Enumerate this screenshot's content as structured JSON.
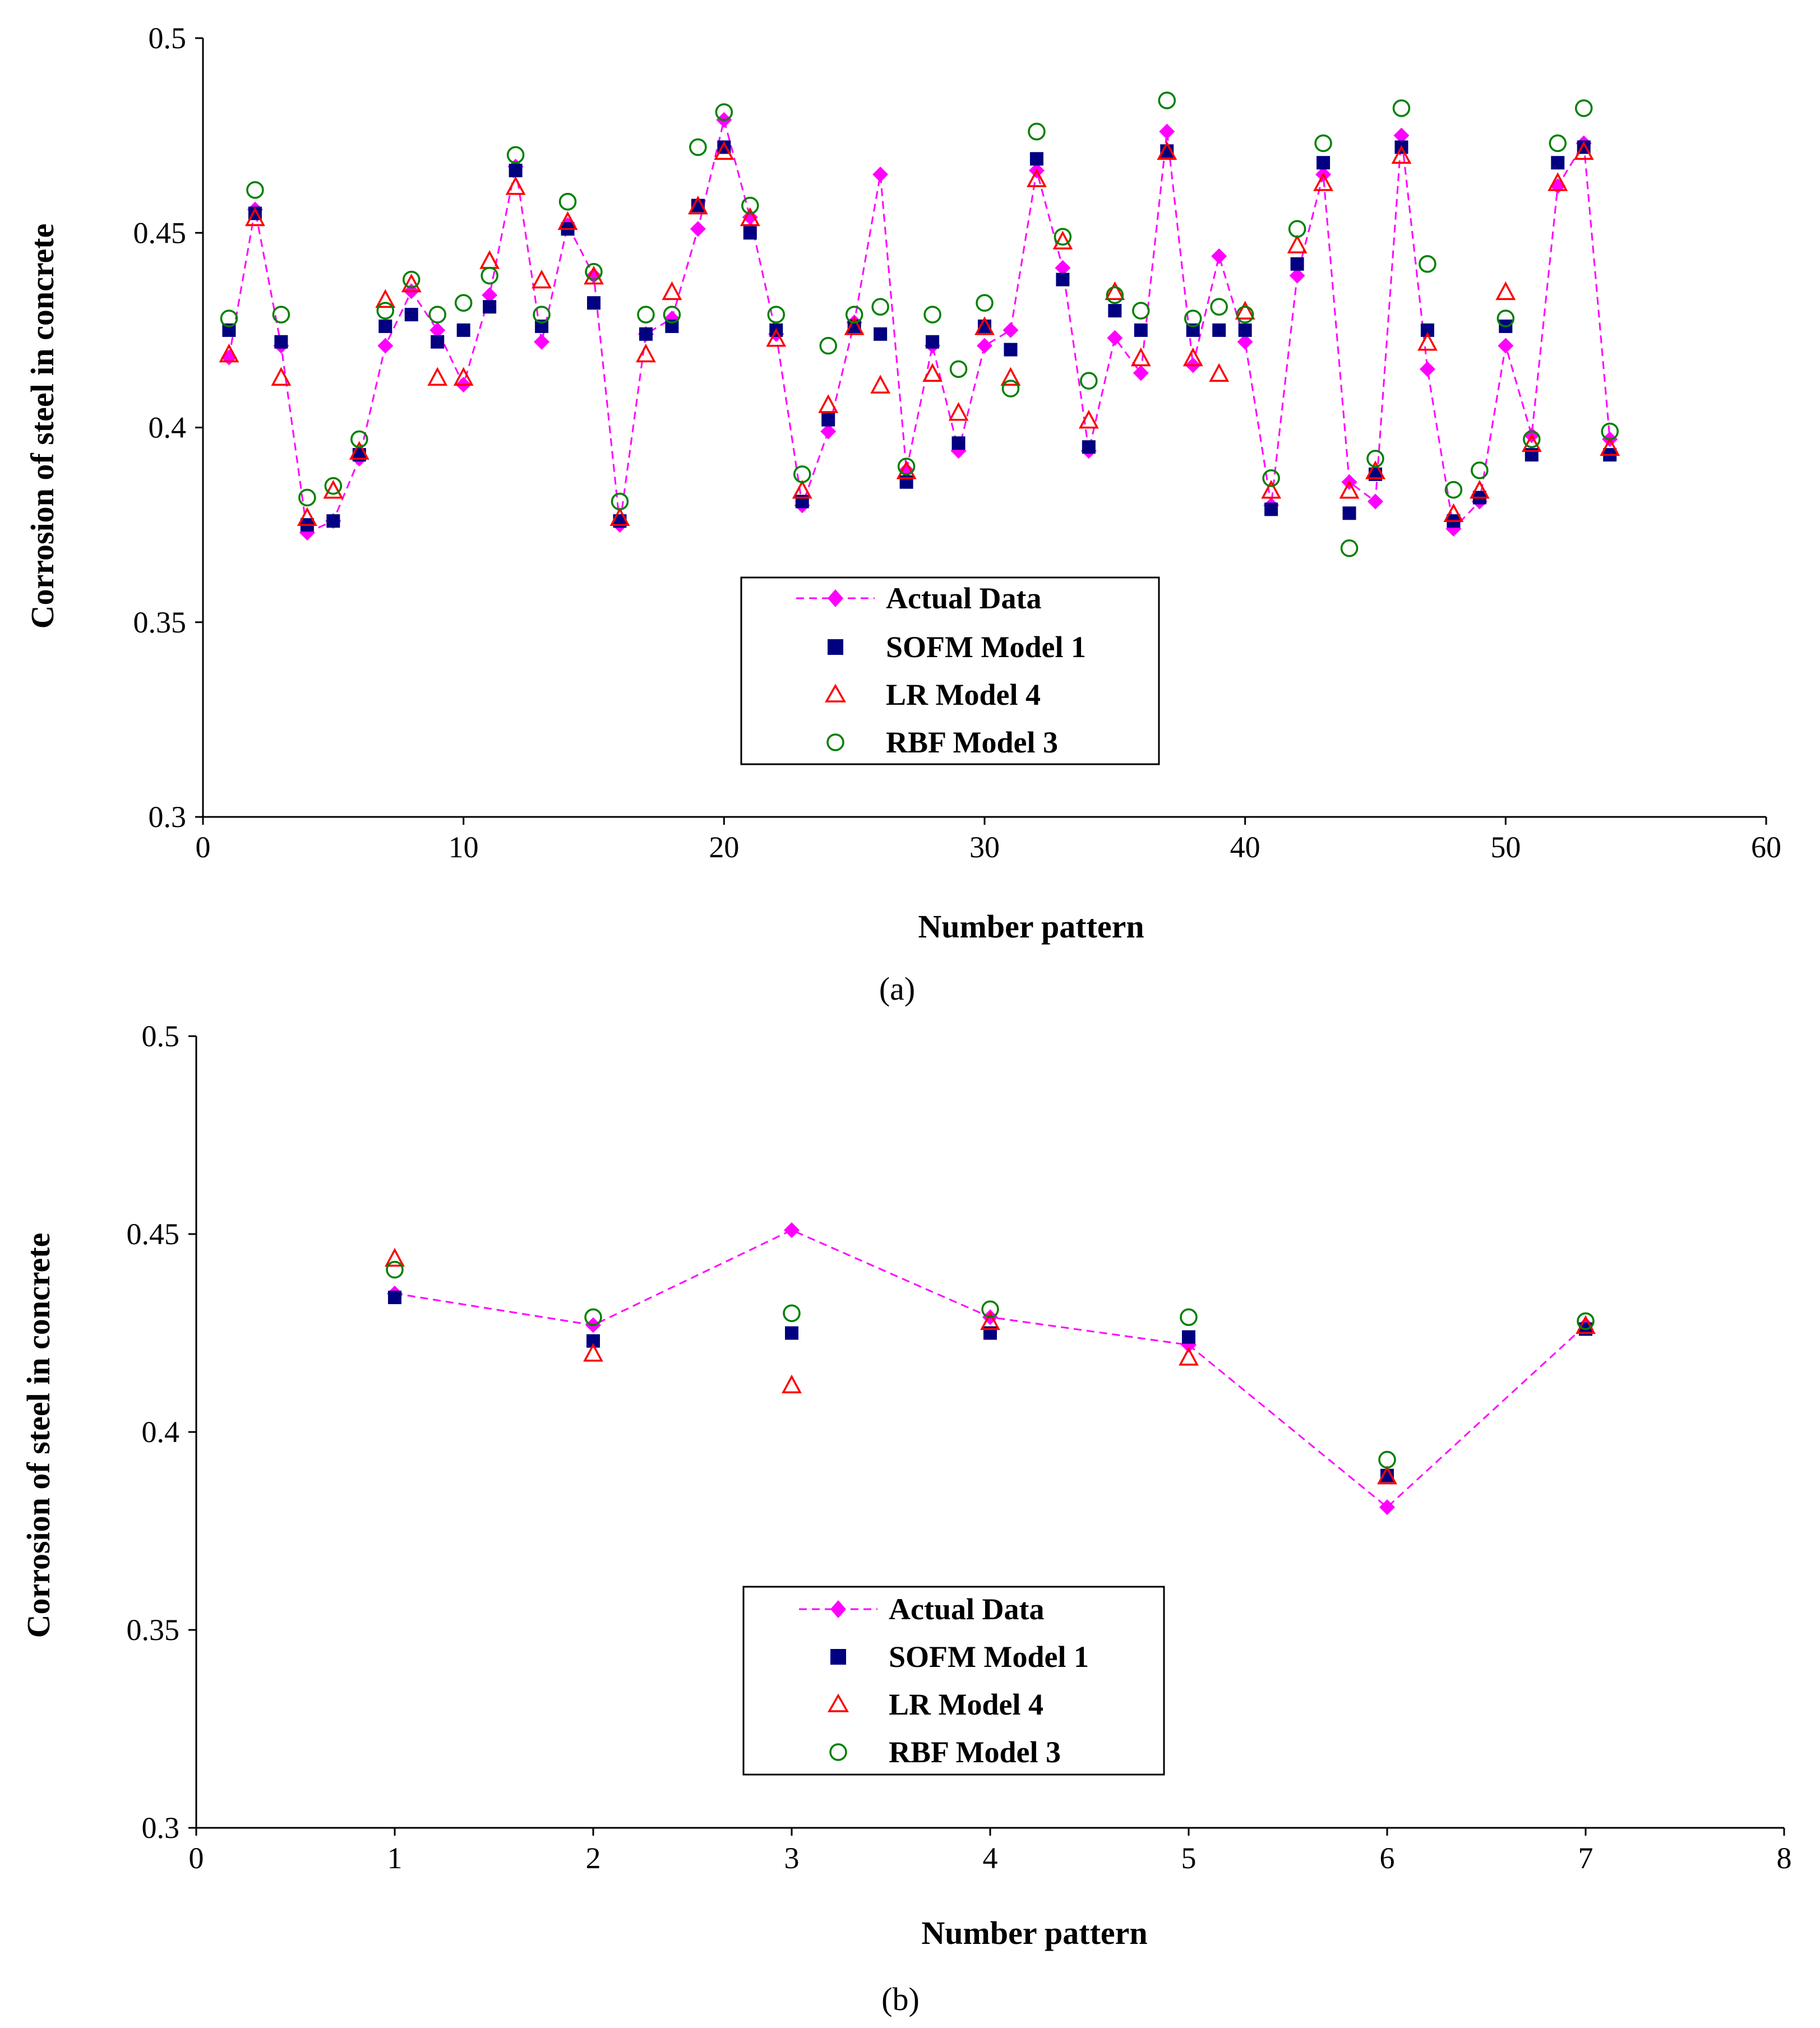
{
  "colors": {
    "actual": "#ff00ff",
    "sofm": "#000080",
    "lr": "#ff0000",
    "rbf": "#008000"
  },
  "chart_data": [
    {
      "id": "a",
      "type": "scatter",
      "panel_label": "(a)",
      "xlabel": "Number pattern",
      "ylabel": "Corrosion of steel in concrete",
      "xlim": [
        0,
        60
      ],
      "ylim": [
        0.3,
        0.5
      ],
      "xticks": [
        0,
        10,
        20,
        30,
        40,
        50,
        60
      ],
      "yticks": [
        0.3,
        0.35,
        0.4,
        0.45,
        0.5
      ],
      "xtick_labels": [
        "0",
        "10",
        "20",
        "30",
        "40",
        "50",
        "60"
      ],
      "ytick_labels": [
        "0.3",
        "0.35",
        "0.4",
        "0.45",
        "0.5"
      ],
      "legend_entries": [
        "Actual Data",
        "SOFM Model 1",
        "LR Model 4",
        "RBF Model 3"
      ],
      "x": [
        1,
        2,
        3,
        4,
        5,
        6,
        7,
        8,
        9,
        10,
        11,
        12,
        13,
        14,
        15,
        16,
        17,
        18,
        19,
        20,
        21,
        22,
        23,
        24,
        25,
        26,
        27,
        28,
        29,
        30,
        31,
        32,
        33,
        34,
        35,
        36,
        37,
        38,
        39,
        40,
        41,
        42,
        43,
        44,
        45,
        46,
        47,
        48,
        49,
        50,
        51,
        52,
        53,
        54
      ],
      "series": [
        {
          "name": "Actual Data",
          "values": [
            0.418,
            0.456,
            0.421,
            0.373,
            0.376,
            0.392,
            0.421,
            0.435,
            0.425,
            0.411,
            0.434,
            0.467,
            0.422,
            0.452,
            0.439,
            0.375,
            0.424,
            0.428,
            0.451,
            0.479,
            0.454,
            0.424,
            0.38,
            0.399,
            0.427,
            0.465,
            0.389,
            0.421,
            0.394,
            0.421,
            0.425,
            0.466,
            0.441,
            0.394,
            0.423,
            0.414,
            0.476,
            0.416,
            0.444,
            0.422,
            0.38,
            0.439,
            0.465,
            0.386,
            0.381,
            0.475,
            0.415,
            0.374,
            0.381,
            0.421,
            0.398,
            0.462,
            0.473,
            0.397
          ]
        },
        {
          "name": "SOFM Model 1",
          "values": [
            0.425,
            0.455,
            0.422,
            0.375,
            0.376,
            0.393,
            0.426,
            0.429,
            0.422,
            0.425,
            0.431,
            0.466,
            0.426,
            0.451,
            0.432,
            0.376,
            0.424,
            0.426,
            0.457,
            0.472,
            0.45,
            0.425,
            0.381,
            0.402,
            0.426,
            0.424,
            0.386,
            0.422,
            0.396,
            0.426,
            0.42,
            0.469,
            0.438,
            0.395,
            0.43,
            0.425,
            0.471,
            0.425,
            0.425,
            0.425,
            0.379,
            0.442,
            0.468,
            0.378,
            0.388,
            0.472,
            0.425,
            0.376,
            0.382,
            0.426,
            0.393,
            0.468,
            0.472,
            0.393
          ]
        },
        {
          "name": "LR Model 4",
          "values": [
            0.419,
            0.454,
            0.413,
            0.377,
            0.384,
            0.394,
            0.433,
            0.437,
            0.413,
            0.413,
            0.443,
            0.462,
            0.438,
            0.453,
            0.439,
            0.377,
            0.419,
            0.435,
            0.457,
            0.471,
            0.454,
            0.423,
            0.384,
            0.406,
            0.426,
            0.411,
            0.389,
            0.414,
            0.404,
            0.426,
            0.413,
            0.464,
            0.448,
            0.402,
            0.435,
            0.418,
            0.471,
            0.418,
            0.414,
            0.43,
            0.384,
            0.447,
            0.463,
            0.384,
            0.389,
            0.47,
            0.422,
            0.378,
            0.384,
            0.435,
            0.396,
            0.463,
            0.471,
            0.395
          ]
        },
        {
          "name": "RBF Model 3",
          "values": [
            0.428,
            0.461,
            0.429,
            0.382,
            0.385,
            0.397,
            0.43,
            0.438,
            0.429,
            0.432,
            0.439,
            0.47,
            0.429,
            0.458,
            0.44,
            0.381,
            0.429,
            0.429,
            0.472,
            0.481,
            0.457,
            0.429,
            0.388,
            0.421,
            0.429,
            0.431,
            0.39,
            0.429,
            0.415,
            0.432,
            0.41,
            0.476,
            0.449,
            0.412,
            0.434,
            0.43,
            0.484,
            0.428,
            0.431,
            0.429,
            0.387,
            0.451,
            0.473,
            0.369,
            0.392,
            0.482,
            0.442,
            0.384,
            0.389,
            0.428,
            0.397,
            0.473,
            0.482,
            0.399
          ]
        }
      ]
    },
    {
      "id": "b",
      "type": "scatter",
      "panel_label": "(b)",
      "xlabel": "Number pattern",
      "ylabel": "Corrosion of steel in concrete",
      "xlim": [
        0,
        8
      ],
      "ylim": [
        0.3,
        0.5
      ],
      "xticks": [
        0,
        1,
        2,
        3,
        4,
        5,
        6,
        7,
        8
      ],
      "yticks": [
        0.3,
        0.35,
        0.4,
        0.45,
        0.5
      ],
      "xtick_labels": [
        "0",
        "1",
        "2",
        "3",
        "4",
        "5",
        "6",
        "7",
        "8"
      ],
      "ytick_labels": [
        "0.3",
        "0.35",
        "0.4",
        "0.45",
        "0.5"
      ],
      "legend_entries": [
        "Actual Data",
        "SOFM Model 1",
        "LR Model 4",
        "RBF Model 3"
      ],
      "x": [
        1,
        2,
        3,
        4,
        5,
        6,
        7
      ],
      "series": [
        {
          "name": "Actual Data",
          "values": [
            0.435,
            0.427,
            0.451,
            0.429,
            0.422,
            0.381,
            0.427
          ]
        },
        {
          "name": "SOFM Model 1",
          "values": [
            0.434,
            0.423,
            0.425,
            0.425,
            0.424,
            0.389,
            0.426
          ]
        },
        {
          "name": "LR Model 4",
          "values": [
            0.444,
            0.42,
            0.412,
            0.428,
            0.419,
            0.389,
            0.427
          ]
        },
        {
          "name": "RBF Model 3",
          "values": [
            0.441,
            0.429,
            0.43,
            0.431,
            0.429,
            0.393,
            0.428
          ]
        }
      ]
    }
  ]
}
